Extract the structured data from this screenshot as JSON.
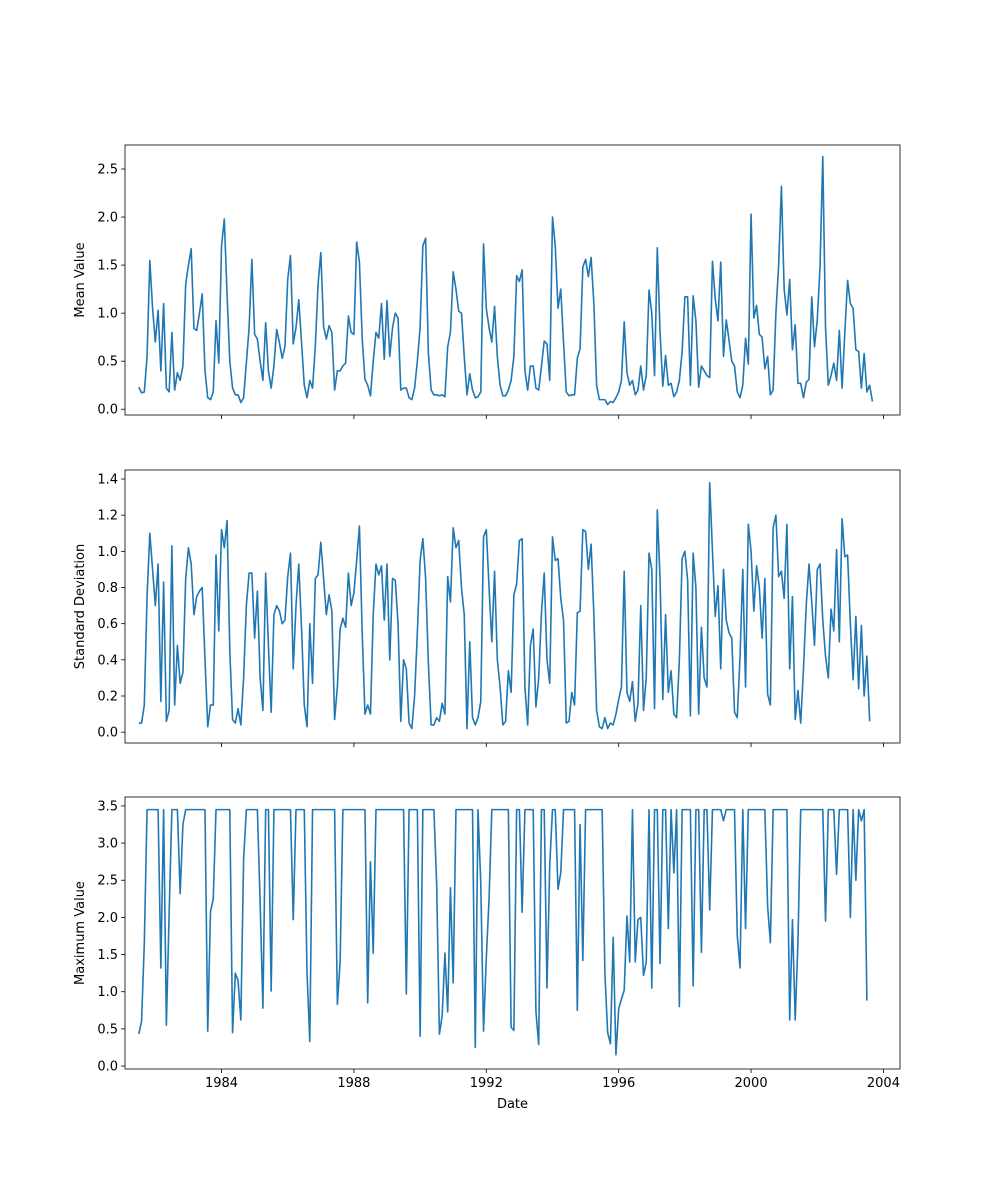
{
  "chart_data": [
    {
      "type": "line",
      "ylabel": "Mean Value",
      "xlabel": "",
      "x_range": [
        "1981-02-01",
        "2004-07-01"
      ],
      "ylim": [
        -0.06,
        2.75
      ],
      "yticks": [
        "0.0",
        "0.5",
        "1.0",
        "1.5",
        "2.0",
        "2.5"
      ],
      "x_tick_labels_shown": false,
      "grid": false,
      "color": "#1f77b4",
      "x_start": "1981-07",
      "x_step": "1 month",
      "values": [
        0.23,
        0.17,
        0.18,
        0.55,
        1.55,
        1.05,
        0.7,
        1.03,
        0.4,
        1.1,
        0.22,
        0.18,
        0.8,
        0.2,
        0.38,
        0.3,
        0.45,
        1.3,
        1.5,
        1.67,
        0.84,
        0.82,
        1.0,
        1.2,
        0.4,
        0.12,
        0.1,
        0.18,
        0.92,
        0.48,
        1.7,
        1.98,
        1.2,
        0.5,
        0.22,
        0.15,
        0.15,
        0.07,
        0.12,
        0.48,
        0.85,
        1.56,
        0.78,
        0.73,
        0.5,
        0.3,
        0.9,
        0.4,
        0.22,
        0.45,
        0.83,
        0.69,
        0.53,
        0.65,
        1.35,
        1.6,
        0.68,
        0.85,
        1.14,
        0.7,
        0.25,
        0.12,
        0.3,
        0.22,
        0.65,
        1.3,
        1.63,
        0.86,
        0.73,
        0.87,
        0.8,
        0.2,
        0.4,
        0.4,
        0.45,
        0.48,
        0.97,
        0.8,
        0.78,
        1.74,
        1.53,
        0.74,
        0.31,
        0.25,
        0.14,
        0.5,
        0.8,
        0.74,
        1.1,
        0.52,
        1.13,
        0.55,
        0.85,
        1.0,
        0.95,
        0.2,
        0.22,
        0.22,
        0.12,
        0.1,
        0.22,
        0.5,
        0.85,
        1.7,
        1.78,
        0.58,
        0.2,
        0.15,
        0.15,
        0.14,
        0.15,
        0.13,
        0.65,
        0.8,
        1.43,
        1.25,
        1.02,
        1.0,
        0.55,
        0.15,
        0.37,
        0.2,
        0.12,
        0.13,
        0.18,
        1.72,
        1.05,
        0.85,
        0.7,
        1.07,
        0.55,
        0.25,
        0.14,
        0.14,
        0.2,
        0.3,
        0.55,
        1.39,
        1.33,
        1.45,
        0.4,
        0.2,
        0.45,
        0.45,
        0.22,
        0.2,
        0.45,
        0.71,
        0.68,
        0.3,
        2.0,
        1.7,
        1.05,
        1.25,
        0.7,
        0.18,
        0.14,
        0.15,
        0.15,
        0.53,
        0.63,
        1.48,
        1.56,
        1.38,
        1.58,
        1.1,
        0.25,
        0.1,
        0.1,
        0.1,
        0.05,
        0.08,
        0.07,
        0.12,
        0.18,
        0.3,
        0.91,
        0.38,
        0.25,
        0.3,
        0.15,
        0.2,
        0.45,
        0.2,
        0.35,
        1.24,
        1.0,
        0.35,
        1.68,
        0.8,
        0.24,
        0.56,
        0.25,
        0.27,
        0.13,
        0.18,
        0.3,
        0.6,
        1.17,
        1.17,
        0.25,
        1.18,
        0.92,
        0.23,
        0.45,
        0.4,
        0.35,
        0.33,
        1.54,
        1.15,
        0.92,
        1.53,
        0.55,
        0.93,
        0.72,
        0.5,
        0.45,
        0.18,
        0.12,
        0.25,
        0.74,
        0.47,
        2.03,
        0.95,
        1.08,
        0.78,
        0.75,
        0.42,
        0.55,
        0.15,
        0.2,
        1.0,
        1.5,
        2.32,
        1.25,
        0.98,
        1.35,
        0.62,
        0.88,
        0.27,
        0.27,
        0.12,
        0.28,
        0.31,
        1.17,
        0.65,
        0.93,
        1.48,
        2.63,
        0.85,
        0.25,
        0.35,
        0.48,
        0.3,
        0.82,
        0.22,
        0.8,
        1.34,
        1.1,
        1.05,
        0.62,
        0.6,
        0.22,
        0.58,
        0.18,
        0.25,
        0.08
      ]
    },
    {
      "type": "line",
      "ylabel": "Standard Deviation",
      "xlabel": "",
      "x_range": [
        "1981-02-01",
        "2004-07-01"
      ],
      "ylim": [
        -0.06,
        1.45
      ],
      "yticks": [
        "0.0",
        "0.2",
        "0.4",
        "0.6",
        "0.8",
        "1.0",
        "1.2",
        "1.4"
      ],
      "x_tick_labels_shown": false,
      "grid": false,
      "color": "#1f77b4",
      "x_start": "1981-07",
      "x_step": "1 month",
      "values": [
        0.05,
        0.05,
        0.15,
        0.75,
        1.1,
        0.9,
        0.7,
        0.93,
        0.17,
        0.83,
        0.06,
        0.12,
        1.03,
        0.15,
        0.48,
        0.27,
        0.33,
        0.85,
        1.02,
        0.93,
        0.65,
        0.75,
        0.78,
        0.8,
        0.4,
        0.03,
        0.15,
        0.15,
        0.98,
        0.56,
        1.12,
        1.02,
        1.17,
        0.45,
        0.07,
        0.05,
        0.13,
        0.04,
        0.3,
        0.7,
        0.88,
        0.88,
        0.52,
        0.78,
        0.3,
        0.12,
        0.88,
        0.48,
        0.11,
        0.65,
        0.7,
        0.67,
        0.6,
        0.62,
        0.86,
        0.99,
        0.35,
        0.7,
        0.93,
        0.58,
        0.15,
        0.03,
        0.6,
        0.27,
        0.85,
        0.87,
        1.05,
        0.85,
        0.65,
        0.76,
        0.67,
        0.07,
        0.25,
        0.57,
        0.63,
        0.58,
        0.88,
        0.7,
        0.77,
        0.95,
        1.14,
        0.55,
        0.1,
        0.15,
        0.1,
        0.65,
        0.93,
        0.87,
        0.92,
        0.62,
        0.93,
        0.4,
        0.85,
        0.84,
        0.6,
        0.06,
        0.4,
        0.35,
        0.05,
        0.02,
        0.2,
        0.55,
        0.95,
        1.07,
        0.85,
        0.38,
        0.04,
        0.04,
        0.08,
        0.06,
        0.16,
        0.1,
        0.86,
        0.72,
        1.13,
        1.02,
        1.06,
        0.8,
        0.65,
        0.02,
        0.5,
        0.08,
        0.04,
        0.08,
        0.17,
        1.08,
        1.12,
        0.8,
        0.5,
        0.89,
        0.4,
        0.25,
        0.04,
        0.06,
        0.34,
        0.22,
        0.76,
        0.82,
        1.06,
        1.07,
        0.25,
        0.04,
        0.48,
        0.57,
        0.14,
        0.3,
        0.66,
        0.88,
        0.4,
        0.27,
        1.08,
        0.95,
        0.96,
        0.74,
        0.62,
        0.05,
        0.06,
        0.22,
        0.15,
        0.66,
        0.67,
        1.12,
        1.11,
        0.9,
        1.04,
        0.65,
        0.12,
        0.03,
        0.02,
        0.08,
        0.02,
        0.05,
        0.04,
        0.1,
        0.18,
        0.25,
        0.89,
        0.22,
        0.17,
        0.28,
        0.06,
        0.16,
        0.7,
        0.12,
        0.3,
        0.99,
        0.9,
        0.13,
        1.23,
        0.85,
        0.18,
        0.65,
        0.22,
        0.34,
        0.1,
        0.08,
        0.4,
        0.96,
        1.0,
        0.84,
        0.09,
        0.99,
        0.8,
        0.1,
        0.58,
        0.3,
        0.25,
        1.38,
        1.0,
        0.64,
        0.81,
        0.35,
        0.9,
        0.62,
        0.55,
        0.52,
        0.11,
        0.08,
        0.42,
        0.9,
        0.25,
        1.15,
        1.0,
        0.67,
        0.92,
        0.8,
        0.52,
        0.85,
        0.21,
        0.15,
        1.13,
        1.2,
        0.86,
        0.89,
        0.74,
        1.15,
        0.35,
        0.75,
        0.07,
        0.23,
        0.05,
        0.35,
        0.7,
        0.93,
        0.72,
        0.48,
        0.9,
        0.93,
        0.62,
        0.42,
        0.3,
        0.68,
        0.56,
        1.01,
        0.5,
        1.18,
        0.97,
        0.98,
        0.6,
        0.29,
        0.64,
        0.24,
        0.59,
        0.2,
        0.42,
        0.06
      ]
    },
    {
      "type": "line",
      "ylabel": "Maximum Value",
      "xlabel": "Date",
      "x_range": [
        "1981-02-01",
        "2004-07-01"
      ],
      "ylim": [
        -0.04,
        3.62
      ],
      "yticks": [
        "0.0",
        "0.5",
        "1.0",
        "1.5",
        "2.0",
        "2.5",
        "3.0",
        "3.5"
      ],
      "xticks": [
        "1984",
        "1988",
        "1992",
        "1996",
        "2000",
        "2004"
      ],
      "grid": false,
      "color": "#1f77b4",
      "x_start": "1981-07",
      "x_step": "1 month",
      "values": [
        0.43,
        0.6,
        1.65,
        3.45,
        3.45,
        3.45,
        3.45,
        3.45,
        1.32,
        3.45,
        0.55,
        2.05,
        3.45,
        3.45,
        3.45,
        2.32,
        3.25,
        3.45,
        3.45,
        3.45,
        3.45,
        3.45,
        3.45,
        3.45,
        3.45,
        0.47,
        2.08,
        2.25,
        3.45,
        3.45,
        3.45,
        3.45,
        3.45,
        3.45,
        0.45,
        1.25,
        1.15,
        0.62,
        2.78,
        3.45,
        3.45,
        3.45,
        3.45,
        3.45,
        2.2,
        0.78,
        3.45,
        3.45,
        1.01,
        3.45,
        3.45,
        3.45,
        3.45,
        3.45,
        3.45,
        3.45,
        1.97,
        3.45,
        3.45,
        3.45,
        3.45,
        1.25,
        0.33,
        3.45,
        3.45,
        3.45,
        3.45,
        3.45,
        3.45,
        3.45,
        3.45,
        3.45,
        0.83,
        1.4,
        3.45,
        3.45,
        3.45,
        3.45,
        3.45,
        3.45,
        3.45,
        3.45,
        3.45,
        0.85,
        2.75,
        1.52,
        3.45,
        3.45,
        3.45,
        3.45,
        3.45,
        3.45,
        3.45,
        3.45,
        3.45,
        3.45,
        3.45,
        0.97,
        3.45,
        3.45,
        3.45,
        3.45,
        0.4,
        3.45,
        3.45,
        3.45,
        3.45,
        3.45,
        2.45,
        0.43,
        0.68,
        1.52,
        0.73,
        2.4,
        1.12,
        3.45,
        3.45,
        3.45,
        3.45,
        3.45,
        3.45,
        3.45,
        0.25,
        3.45,
        2.45,
        0.47,
        1.45,
        2.25,
        3.45,
        3.45,
        3.45,
        3.45,
        3.45,
        3.45,
        3.45,
        0.52,
        0.48,
        3.45,
        3.45,
        2.07,
        3.45,
        3.45,
        3.45,
        3.45,
        0.73,
        0.29,
        3.45,
        3.45,
        1.05,
        2.7,
        3.45,
        3.45,
        2.38,
        2.6,
        3.45,
        3.45,
        3.45,
        3.45,
        3.45,
        0.75,
        3.25,
        1.42,
        3.45,
        3.45,
        3.45,
        3.45,
        3.45,
        3.45,
        3.45,
        1.25,
        0.45,
        0.3,
        1.73,
        0.15,
        0.77,
        0.9,
        1.02,
        2.02,
        1.4,
        3.45,
        1.4,
        1.97,
        2.0,
        1.22,
        1.4,
        3.45,
        1.05,
        3.45,
        3.45,
        1.38,
        3.45,
        3.45,
        1.85,
        3.45,
        2.6,
        3.45,
        0.8,
        3.45,
        3.45,
        3.45,
        3.45,
        1.08,
        3.45,
        3.45,
        1.53,
        3.45,
        3.45,
        2.1,
        3.45,
        3.45,
        3.45,
        3.45,
        3.3,
        3.45,
        3.45,
        3.45,
        3.45,
        1.75,
        1.32,
        3.45,
        1.85,
        3.45,
        3.45,
        3.45,
        3.45,
        3.45,
        3.45,
        3.45,
        2.15,
        1.66,
        3.45,
        3.45,
        3.45,
        3.45,
        3.45,
        3.45,
        0.62,
        1.97,
        0.62,
        1.67,
        3.45,
        3.45,
        3.45,
        3.45,
        3.45,
        3.45,
        3.45,
        3.45,
        3.45,
        1.95,
        3.45,
        3.45,
        3.45,
        2.58,
        3.45,
        3.45,
        3.45,
        3.45,
        2.0,
        3.45,
        2.5,
        3.45,
        3.3,
        3.45,
        0.88
      ]
    }
  ]
}
